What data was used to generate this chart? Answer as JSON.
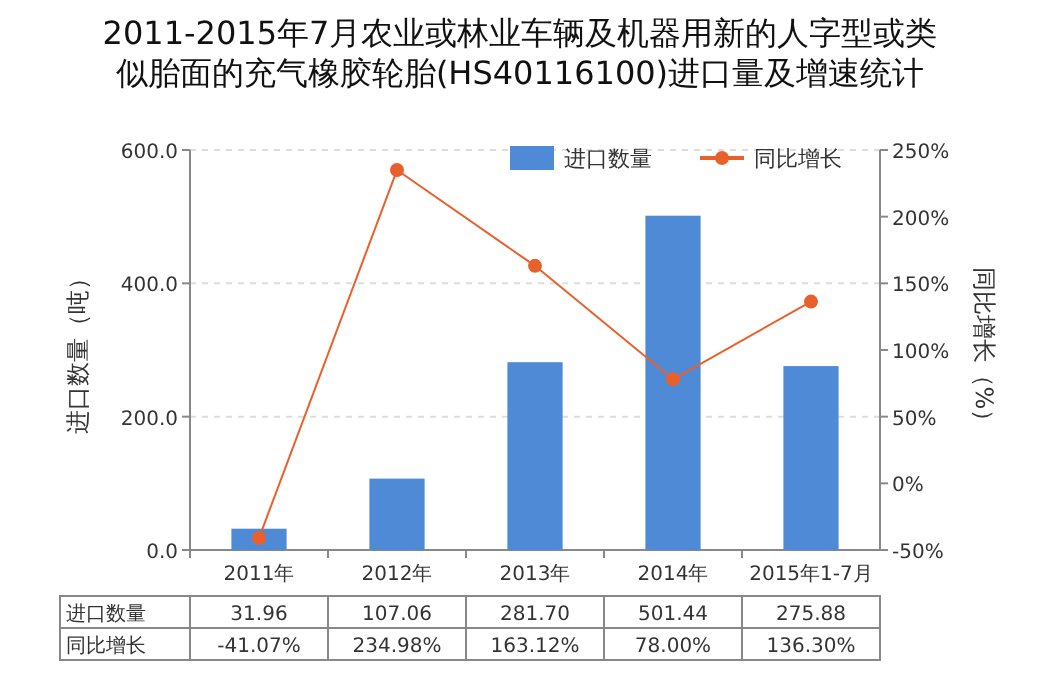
{
  "chart_data": {
    "type": "bar",
    "title": "2011-2015年7月农业或林业车辆及机器用新的人字型或类似胎面的充气橡胶轮胎(HS40116100)进口量及增速统计",
    "categories": [
      "2011年",
      "2012年",
      "2013年",
      "2014年",
      "2015年1-7月"
    ],
    "series": [
      {
        "name": "进口数量",
        "color": "#4f8ad6",
        "values": [
          31.96,
          107.06,
          281.7,
          501.44,
          275.88
        ],
        "value_labels": [
          "31.96",
          "107.06",
          "281.70",
          "501.44",
          "275.88"
        ]
      },
      {
        "name": "同比增长",
        "type": "line",
        "axis": "y2",
        "color": "#e8612c",
        "marker": "circle",
        "values": [
          -41.07,
          234.98,
          163.12,
          78.0,
          136.3
        ],
        "value_labels": [
          "-41.07%",
          "234.98%",
          "163.12%",
          "78.00%",
          "136.30%"
        ]
      }
    ],
    "ylabel": "进口数量（吨）",
    "y2label": "同比增长（%）",
    "ylim": [
      0,
      600
    ],
    "yticks": [
      {
        "value": 0,
        "label": "0.0"
      },
      {
        "value": 200,
        "label": "200.0"
      },
      {
        "value": 400,
        "label": "400.0"
      },
      {
        "value": 600,
        "label": "600.0"
      }
    ],
    "y2lim": [
      -50,
      250
    ],
    "y2ticks": [
      {
        "value": -50,
        "label": "-50%"
      },
      {
        "value": 0,
        "label": "0%"
      },
      {
        "value": 50,
        "label": "50%"
      },
      {
        "value": 100,
        "label": "100%"
      },
      {
        "value": 150,
        "label": "150%"
      },
      {
        "value": 200,
        "label": "200%"
      },
      {
        "value": 250,
        "label": "250%"
      }
    ],
    "grid": "y",
    "legend": "top right"
  }
}
